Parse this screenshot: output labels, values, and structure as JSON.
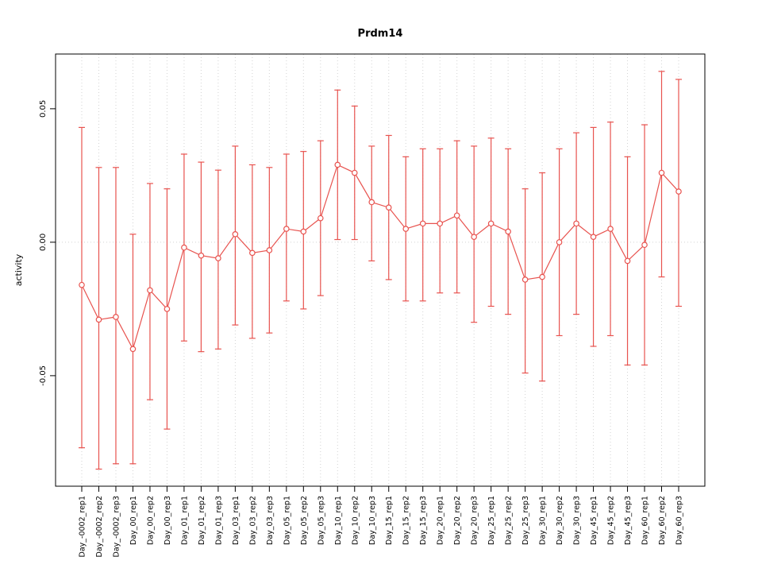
{
  "chart_data": {
    "type": "line",
    "title": "Prdm14",
    "xlabel": "",
    "ylabel": "activity",
    "legend": "none",
    "grid": "vertical dotted line per category, dotted horizontal line at 0",
    "ylim": [
      -0.0914,
      0.0705
    ],
    "yticks": {
      "values": [
        0.05,
        0,
        -0.05
      ],
      "labels": [
        "0.05",
        "0.00",
        "-0.05"
      ]
    },
    "categories": [
      "Day_-0002_rep1",
      "Day_-0002_rep2",
      "Day_-0002_rep3",
      "Day_00_rep1",
      "Day_00_rep2",
      "Day_00_rep3",
      "Day_01_rep1",
      "Day_01_rep2",
      "Day_01_rep3",
      "Day_03_rep1",
      "Day_03_rep2",
      "Day_03_rep3",
      "Day_05_rep1",
      "Day_05_rep2",
      "Day_05_rep3",
      "Day_10_rep1",
      "Day_10_rep2",
      "Day_10_rep3",
      "Day_15_rep1",
      "Day_15_rep2",
      "Day_15_rep3",
      "Day_20_rep1",
      "Day_20_rep2",
      "Day_20_rep3",
      "Day_25_rep1",
      "Day_25_rep2",
      "Day_25_rep3",
      "Day_30_rep1",
      "Day_30_rep2",
      "Day_30_rep3",
      "Day_45_rep1",
      "Day_45_rep2",
      "Day_45_rep3",
      "Day_60_rep1",
      "Day_60_rep2",
      "Day_60_rep3"
    ],
    "series": [
      {
        "name": "Prdm14 activity",
        "values": [
          -0.016,
          -0.029,
          -0.028,
          -0.04,
          -0.018,
          -0.025,
          -0.002,
          -0.005,
          -0.006,
          0.003,
          -0.004,
          -0.003,
          0.005,
          0.004,
          0.009,
          0.029,
          0.026,
          0.015,
          0.013,
          0.005,
          0.007,
          0.007,
          0.01,
          0.002,
          0.007,
          0.004,
          -0.014,
          -0.013,
          0.0,
          0.007,
          0.002,
          0.005,
          -0.007,
          -0.001,
          0.026,
          0.019
        ],
        "upper": [
          0.043,
          0.028,
          0.028,
          0.003,
          0.022,
          0.02,
          0.033,
          0.03,
          0.027,
          0.036,
          0.029,
          0.028,
          0.033,
          0.034,
          0.038,
          0.057,
          0.051,
          0.036,
          0.04,
          0.032,
          0.035,
          0.035,
          0.038,
          0.036,
          0.039,
          0.035,
          0.02,
          0.026,
          0.035,
          0.041,
          0.043,
          0.045,
          0.032,
          0.044,
          0.064,
          0.061
        ],
        "lower": [
          -0.077,
          -0.085,
          -0.083,
          -0.083,
          -0.059,
          -0.07,
          -0.037,
          -0.041,
          -0.04,
          -0.031,
          -0.036,
          -0.034,
          -0.022,
          -0.025,
          -0.02,
          0.001,
          0.001,
          -0.007,
          -0.014,
          -0.022,
          -0.022,
          -0.019,
          -0.019,
          -0.03,
          -0.024,
          -0.027,
          -0.049,
          -0.052,
          -0.035,
          -0.027,
          -0.039,
          -0.035,
          -0.046,
          -0.046,
          -0.013,
          -0.024
        ]
      }
    ],
    "colors": {
      "series": "#e8534f",
      "grid": "#d3d3d3",
      "zero_line": "#d3d3d3",
      "axis": "#000000",
      "point_fill": "#ffffff"
    }
  }
}
